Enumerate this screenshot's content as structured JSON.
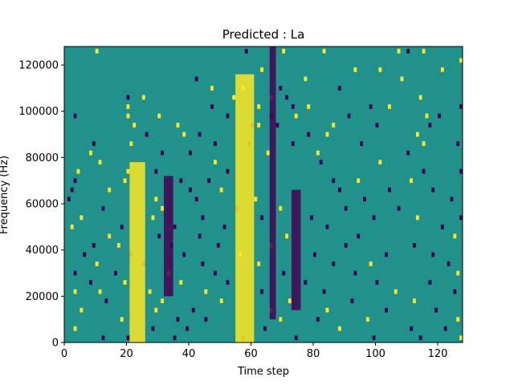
{
  "chart_data": {
    "type": "heatmap",
    "title": "Predicted : La",
    "xlabel": "Time step",
    "ylabel": "Frequency (Hz)",
    "xlim": [
      0,
      128
    ],
    "ylim": [
      0,
      128000
    ],
    "x_ticks": [
      0,
      20,
      40,
      60,
      80,
      100,
      120
    ],
    "y_ticks": [
      0,
      20000,
      40000,
      60000,
      80000,
      100000,
      120000
    ],
    "x_tick_labels": [
      "0",
      "20",
      "40",
      "60",
      "80",
      "100",
      "120"
    ],
    "y_tick_labels": [
      "0",
      "20000",
      "40000",
      "60000",
      "80000",
      "100000",
      "120000"
    ],
    "time_steps": 128,
    "frequency_bins": 64,
    "bin_width_hz": 2000,
    "value_levels": [
      -1,
      0,
      1
    ],
    "colormap": {
      "low": "#440154",
      "mid": "#21918c",
      "high": "#fde725"
    },
    "grid": false,
    "dominant_high_bands": [
      {
        "x_start": 21,
        "x_end": 26,
        "y_start": 0,
        "y_end": 78000
      },
      {
        "x_start": 55,
        "x_end": 61,
        "y_start": 0,
        "y_end": 116000
      }
    ],
    "dominant_low_bands": [
      {
        "x_start": 32,
        "x_end": 35,
        "y_start": 20000,
        "y_end": 72000
      },
      {
        "x_start": 66,
        "x_end": 68,
        "y_start": 10000,
        "y_end": 128000
      },
      {
        "x_start": 73,
        "x_end": 76,
        "y_start": 14000,
        "y_end": 66000
      }
    ],
    "cells": [
      {
        "x": 10,
        "y": 126000,
        "v": 1
      },
      {
        "x": 58,
        "y": 126000,
        "v": -1
      },
      {
        "x": 70,
        "y": 126000,
        "v": 1
      },
      {
        "x": 83,
        "y": 126000,
        "v": 1
      },
      {
        "x": 107,
        "y": 126000,
        "v": 1
      },
      {
        "x": 110,
        "y": 126000,
        "v": -1
      },
      {
        "x": 115,
        "y": 126000,
        "v": 1
      },
      {
        "x": 127,
        "y": 122000,
        "v": 1
      },
      {
        "x": 63,
        "y": 118000,
        "v": 1
      },
      {
        "x": 93,
        "y": 118000,
        "v": 1
      },
      {
        "x": 101,
        "y": 118000,
        "v": 1
      },
      {
        "x": 121,
        "y": 118000,
        "v": 1
      },
      {
        "x": 42,
        "y": 114000,
        "v": -1
      },
      {
        "x": 77,
        "y": 114000,
        "v": 1
      },
      {
        "x": 108,
        "y": 114000,
        "v": 1
      },
      {
        "x": 47,
        "y": 110000,
        "v": 1
      },
      {
        "x": 57,
        "y": 110000,
        "v": 1
      },
      {
        "x": 69,
        "y": 110000,
        "v": -1
      },
      {
        "x": 88,
        "y": 110000,
        "v": -1
      },
      {
        "x": 20,
        "y": 106000,
        "v": -1
      },
      {
        "x": 25,
        "y": 106000,
        "v": 1
      },
      {
        "x": 54,
        "y": 106000,
        "v": 1
      },
      {
        "x": 66,
        "y": 106000,
        "v": 1
      },
      {
        "x": 71,
        "y": 106000,
        "v": -1
      },
      {
        "x": 114,
        "y": 106000,
        "v": 1
      },
      {
        "x": 20,
        "y": 102000,
        "v": 1
      },
      {
        "x": 47,
        "y": 102000,
        "v": -1
      },
      {
        "x": 62,
        "y": 102000,
        "v": 1
      },
      {
        "x": 73,
        "y": 102000,
        "v": -1
      },
      {
        "x": 78,
        "y": 102000,
        "v": 1
      },
      {
        "x": 98,
        "y": 102000,
        "v": -1
      },
      {
        "x": 104,
        "y": 102000,
        "v": 1
      },
      {
        "x": 127,
        "y": 102000,
        "v": -1
      },
      {
        "x": 3,
        "y": 98000,
        "v": -1
      },
      {
        "x": 20,
        "y": 98000,
        "v": 1
      },
      {
        "x": 30,
        "y": 98000,
        "v": 1
      },
      {
        "x": 52,
        "y": 98000,
        "v": -1
      },
      {
        "x": 66,
        "y": 98000,
        "v": -1
      },
      {
        "x": 74,
        "y": 98000,
        "v": 1
      },
      {
        "x": 91,
        "y": 98000,
        "v": -1
      },
      {
        "x": 116,
        "y": 98000,
        "v": 1
      },
      {
        "x": 120,
        "y": 98000,
        "v": -1
      },
      {
        "x": 22,
        "y": 94000,
        "v": 1
      },
      {
        "x": 36,
        "y": 94000,
        "v": 1
      },
      {
        "x": 60,
        "y": 94000,
        "v": -1
      },
      {
        "x": 62,
        "y": 94000,
        "v": 1
      },
      {
        "x": 68,
        "y": 94000,
        "v": -1
      },
      {
        "x": 86,
        "y": 94000,
        "v": 1
      },
      {
        "x": 100,
        "y": 94000,
        "v": -1
      },
      {
        "x": 117,
        "y": 94000,
        "v": -1
      },
      {
        "x": 26,
        "y": 90000,
        "v": -1
      },
      {
        "x": 38,
        "y": 90000,
        "v": 1
      },
      {
        "x": 43,
        "y": 90000,
        "v": -1
      },
      {
        "x": 78,
        "y": 90000,
        "v": -1
      },
      {
        "x": 84,
        "y": 90000,
        "v": 1
      },
      {
        "x": 113,
        "y": 90000,
        "v": 1
      },
      {
        "x": 9,
        "y": 86000,
        "v": -1
      },
      {
        "x": 21,
        "y": 86000,
        "v": 1
      },
      {
        "x": 48,
        "y": 86000,
        "v": -1
      },
      {
        "x": 59,
        "y": 86000,
        "v": -1
      },
      {
        "x": 73,
        "y": 86000,
        "v": -1
      },
      {
        "x": 95,
        "y": 86000,
        "v": -1
      },
      {
        "x": 115,
        "y": 86000,
        "v": 1
      },
      {
        "x": 126,
        "y": 86000,
        "v": -1
      },
      {
        "x": 8,
        "y": 82000,
        "v": 1
      },
      {
        "x": 31,
        "y": 82000,
        "v": -1
      },
      {
        "x": 40,
        "y": 82000,
        "v": -1
      },
      {
        "x": 65,
        "y": 82000,
        "v": 1
      },
      {
        "x": 81,
        "y": 82000,
        "v": 1
      },
      {
        "x": 110,
        "y": 82000,
        "v": -1
      },
      {
        "x": 11,
        "y": 78000,
        "v": 1
      },
      {
        "x": 48,
        "y": 78000,
        "v": 1
      },
      {
        "x": 82,
        "y": 78000,
        "v": -1
      },
      {
        "x": 101,
        "y": 78000,
        "v": 1
      },
      {
        "x": 4,
        "y": 74000,
        "v": 1
      },
      {
        "x": 20,
        "y": 74000,
        "v": 1
      },
      {
        "x": 29,
        "y": 74000,
        "v": -1
      },
      {
        "x": 52,
        "y": 74000,
        "v": -1
      },
      {
        "x": 115,
        "y": 74000,
        "v": -1
      },
      {
        "x": 127,
        "y": 74000,
        "v": -1
      },
      {
        "x": 3,
        "y": 70000,
        "v": -1
      },
      {
        "x": 19,
        "y": 70000,
        "v": 1
      },
      {
        "x": 37,
        "y": 70000,
        "v": -1
      },
      {
        "x": 46,
        "y": 70000,
        "v": -1
      },
      {
        "x": 86,
        "y": 70000,
        "v": -1
      },
      {
        "x": 94,
        "y": 70000,
        "v": 1
      },
      {
        "x": 111,
        "y": 70000,
        "v": 1
      },
      {
        "x": 2,
        "y": 66000,
        "v": -1
      },
      {
        "x": 14,
        "y": 66000,
        "v": 1
      },
      {
        "x": 40,
        "y": 66000,
        "v": -1
      },
      {
        "x": 50,
        "y": 66000,
        "v": 1
      },
      {
        "x": 88,
        "y": 66000,
        "v": -1
      },
      {
        "x": 104,
        "y": 66000,
        "v": -1
      },
      {
        "x": 118,
        "y": 66000,
        "v": -1
      },
      {
        "x": 1,
        "y": 62000,
        "v": -1
      },
      {
        "x": 29,
        "y": 62000,
        "v": 1
      },
      {
        "x": 42,
        "y": 62000,
        "v": -1
      },
      {
        "x": 61,
        "y": 62000,
        "v": 1
      },
      {
        "x": 96,
        "y": 62000,
        "v": -1
      },
      {
        "x": 124,
        "y": 62000,
        "v": -1
      },
      {
        "x": 12,
        "y": 58000,
        "v": -1
      },
      {
        "x": 31,
        "y": 58000,
        "v": 1
      },
      {
        "x": 55,
        "y": 58000,
        "v": -1
      },
      {
        "x": 69,
        "y": 58000,
        "v": 1
      },
      {
        "x": 90,
        "y": 58000,
        "v": -1
      },
      {
        "x": 107,
        "y": 58000,
        "v": -1
      },
      {
        "x": 5,
        "y": 54000,
        "v": 1
      },
      {
        "x": 28,
        "y": 54000,
        "v": 1
      },
      {
        "x": 44,
        "y": 54000,
        "v": -1
      },
      {
        "x": 63,
        "y": 54000,
        "v": -1
      },
      {
        "x": 79,
        "y": 54000,
        "v": -1
      },
      {
        "x": 99,
        "y": 54000,
        "v": -1
      },
      {
        "x": 113,
        "y": 54000,
        "v": 1
      },
      {
        "x": 127,
        "y": 54000,
        "v": -1
      },
      {
        "x": 2,
        "y": 50000,
        "v": 1
      },
      {
        "x": 18,
        "y": 50000,
        "v": -1
      },
      {
        "x": 35,
        "y": 50000,
        "v": -1
      },
      {
        "x": 51,
        "y": 50000,
        "v": -1
      },
      {
        "x": 84,
        "y": 50000,
        "v": -1
      },
      {
        "x": 121,
        "y": 50000,
        "v": -1
      },
      {
        "x": 14,
        "y": 46000,
        "v": 1
      },
      {
        "x": 30,
        "y": 46000,
        "v": -1
      },
      {
        "x": 43,
        "y": 46000,
        "v": -1
      },
      {
        "x": 71,
        "y": 46000,
        "v": 1
      },
      {
        "x": 94,
        "y": 46000,
        "v": -1
      },
      {
        "x": 125,
        "y": 46000,
        "v": 1
      },
      {
        "x": 9,
        "y": 42000,
        "v": -1
      },
      {
        "x": 17,
        "y": 42000,
        "v": 1
      },
      {
        "x": 34,
        "y": 42000,
        "v": -1
      },
      {
        "x": 49,
        "y": 42000,
        "v": -1
      },
      {
        "x": 66,
        "y": 42000,
        "v": 1
      },
      {
        "x": 90,
        "y": 42000,
        "v": -1
      },
      {
        "x": 112,
        "y": 42000,
        "v": -1
      },
      {
        "x": 6,
        "y": 38000,
        "v": -1
      },
      {
        "x": 21,
        "y": 38000,
        "v": -1
      },
      {
        "x": 38,
        "y": 38000,
        "v": -1
      },
      {
        "x": 56,
        "y": 38000,
        "v": 1
      },
      {
        "x": 80,
        "y": 38000,
        "v": -1
      },
      {
        "x": 103,
        "y": 38000,
        "v": -1
      },
      {
        "x": 118,
        "y": 38000,
        "v": -1
      },
      {
        "x": 10,
        "y": 34000,
        "v": 1
      },
      {
        "x": 25,
        "y": 34000,
        "v": -1
      },
      {
        "x": 44,
        "y": 34000,
        "v": -1
      },
      {
        "x": 62,
        "y": 34000,
        "v": 1
      },
      {
        "x": 86,
        "y": 34000,
        "v": -1
      },
      {
        "x": 98,
        "y": 34000,
        "v": 1
      },
      {
        "x": 123,
        "y": 34000,
        "v": -1
      },
      {
        "x": 3,
        "y": 30000,
        "v": -1
      },
      {
        "x": 16,
        "y": 30000,
        "v": -1
      },
      {
        "x": 33,
        "y": 30000,
        "v": 1
      },
      {
        "x": 48,
        "y": 30000,
        "v": -1
      },
      {
        "x": 70,
        "y": 30000,
        "v": -1
      },
      {
        "x": 93,
        "y": 30000,
        "v": -1
      },
      {
        "x": 126,
        "y": 30000,
        "v": 1
      },
      {
        "x": 8,
        "y": 26000,
        "v": -1
      },
      {
        "x": 19,
        "y": 26000,
        "v": 1
      },
      {
        "x": 37,
        "y": 26000,
        "v": 1
      },
      {
        "x": 52,
        "y": 26000,
        "v": -1
      },
      {
        "x": 77,
        "y": 26000,
        "v": -1
      },
      {
        "x": 100,
        "y": 26000,
        "v": -1
      },
      {
        "x": 117,
        "y": 26000,
        "v": -1
      },
      {
        "x": 3,
        "y": 22000,
        "v": 1
      },
      {
        "x": 11,
        "y": 22000,
        "v": 1
      },
      {
        "x": 27,
        "y": 22000,
        "v": 1
      },
      {
        "x": 45,
        "y": 22000,
        "v": 1
      },
      {
        "x": 63,
        "y": 22000,
        "v": -1
      },
      {
        "x": 83,
        "y": 22000,
        "v": -1
      },
      {
        "x": 106,
        "y": 22000,
        "v": 1
      },
      {
        "x": 125,
        "y": 22000,
        "v": -1
      },
      {
        "x": 13,
        "y": 18000,
        "v": -1
      },
      {
        "x": 31,
        "y": 18000,
        "v": 1
      },
      {
        "x": 50,
        "y": 18000,
        "v": 1
      },
      {
        "x": 72,
        "y": 18000,
        "v": 1
      },
      {
        "x": 92,
        "y": 18000,
        "v": -1
      },
      {
        "x": 112,
        "y": 18000,
        "v": 1
      },
      {
        "x": 5,
        "y": 14000,
        "v": 1
      },
      {
        "x": 29,
        "y": 14000,
        "v": 1
      },
      {
        "x": 41,
        "y": 14000,
        "v": -1
      },
      {
        "x": 66,
        "y": 14000,
        "v": 1
      },
      {
        "x": 84,
        "y": 14000,
        "v": 1
      },
      {
        "x": 103,
        "y": 14000,
        "v": -1
      },
      {
        "x": 119,
        "y": 14000,
        "v": -1
      },
      {
        "x": 18,
        "y": 10000,
        "v": 1
      },
      {
        "x": 36,
        "y": 10000,
        "v": -1
      },
      {
        "x": 45,
        "y": 10000,
        "v": -1
      },
      {
        "x": 69,
        "y": 10000,
        "v": 1
      },
      {
        "x": 81,
        "y": 10000,
        "v": -1
      },
      {
        "x": 97,
        "y": 10000,
        "v": 1
      },
      {
        "x": 126,
        "y": 10000,
        "v": 1
      },
      {
        "x": 3,
        "y": 6000,
        "v": 1
      },
      {
        "x": 28,
        "y": 6000,
        "v": -1
      },
      {
        "x": 39,
        "y": 6000,
        "v": -1
      },
      {
        "x": 64,
        "y": 6000,
        "v": -1
      },
      {
        "x": 88,
        "y": 6000,
        "v": 1
      },
      {
        "x": 111,
        "y": 6000,
        "v": -1
      },
      {
        "x": 122,
        "y": 6000,
        "v": -1
      },
      {
        "x": 12,
        "y": 2000,
        "v": -1
      },
      {
        "x": 20,
        "y": 2000,
        "v": -1
      },
      {
        "x": 35,
        "y": 2000,
        "v": -1
      },
      {
        "x": 57,
        "y": 2000,
        "v": -1
      },
      {
        "x": 74,
        "y": 2000,
        "v": -1
      },
      {
        "x": 99,
        "y": 2000,
        "v": -1
      },
      {
        "x": 114,
        "y": 2000,
        "v": -1
      },
      {
        "x": 127,
        "y": 2000,
        "v": 1
      }
    ]
  }
}
